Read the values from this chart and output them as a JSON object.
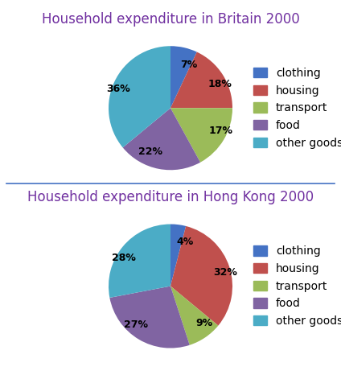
{
  "title1": "Household expenditure in Britain 2000",
  "title2": "Household expenditure in Hong Kong 2000",
  "categories": [
    "clothing",
    "housing",
    "transport",
    "food",
    "other goods"
  ],
  "colors": [
    "#4472C4",
    "#C0504D",
    "#9BBB59",
    "#8064A2",
    "#4BACC6"
  ],
  "britain_values": [
    7,
    18,
    17,
    22,
    36
  ],
  "hongkong_values": [
    4,
    32,
    9,
    27,
    28
  ],
  "title_color": "#7030A0",
  "title_fontsize": 12,
  "label_fontsize": 9,
  "legend_fontsize": 10,
  "background_color": "#ffffff",
  "divider_color": "#4472C4"
}
